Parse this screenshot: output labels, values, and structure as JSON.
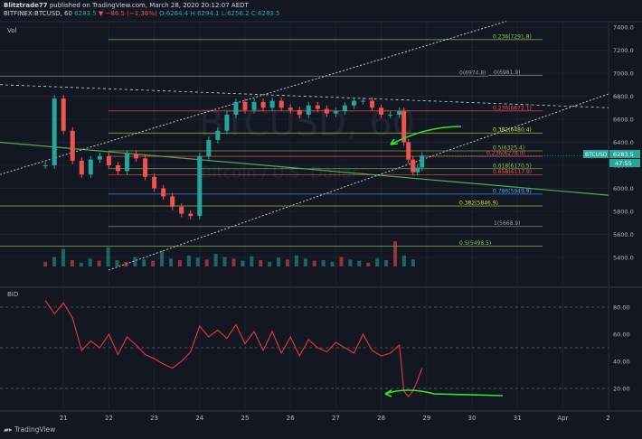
{
  "header": {
    "author": "Blitztrade77",
    "published": "published on TradingView.com, March 28, 2020 20:12:07 AEDT",
    "symbol": "BITFINEX:BTCUSD, 60",
    "last": "6283.5",
    "change": "▼ −86.5 (−1.36%)",
    "o": "O:6264.4",
    "h": "H:6294.1",
    "l": "L:6256.2",
    "c": "C:6283.5"
  },
  "watermark": {
    "main": "BTCUSD, 60",
    "sub": "Bitcoin / U.S. Dollar"
  },
  "colors": {
    "bg": "#131722",
    "up": "#26a69a",
    "down": "#ef5350",
    "line": "#e53935",
    "arrow": "#2ee62e",
    "trend": "#4caf50"
  },
  "chart_data": [
    {
      "type": "candlestick",
      "title": "BITFINEX:BTCUSD, 60",
      "pane_label": "Vol",
      "ylim": [
        5250,
        7450
      ],
      "y_ticks": [
        5400,
        5600,
        5800,
        6000,
        6200,
        6400,
        6600,
        6800,
        7000,
        7200,
        7400
      ],
      "y_tick_labels": [
        "5400.0",
        "5600.0",
        "5800.0",
        "6000.0",
        "6200.0",
        "6400.0",
        "6600.0",
        "6800.0",
        "7000.0",
        "7200.0",
        "7400.0"
      ],
      "x_tick_labels": [
        "21",
        "22",
        "23",
        "24",
        "25",
        "26",
        "27",
        "28",
        "29",
        "30",
        "31",
        "Apr",
        "2"
      ],
      "price_label": "BTCUSD",
      "price_value": "6283.5",
      "price": 6283.5,
      "countdown": "47:55",
      "fib_levels": [
        {
          "label": "0.236(7291.8)",
          "value": 7291.8
        },
        {
          "label": "0(6974.8)",
          "value": 6974.8
        },
        {
          "label": "0(6981.9)",
          "value": 6981.9
        },
        {
          "label": "0.236(6672.1)",
          "value": 6672.1
        },
        {
          "label": "0.382(6480.4)",
          "value": 6480.4
        },
        {
          "label": "0.5(6325.4)",
          "value": 6325.4
        },
        {
          "label": "0.236(6278.0)",
          "value": 6278.0
        },
        {
          "label": "0.618(6170.5)",
          "value": 6170.5
        },
        {
          "label": "0.65B(6117.9)",
          "value": 6117.9
        },
        {
          "label": "0.786(5949.9)",
          "value": 5949.9
        },
        {
          "label": "0.382(5846.9)",
          "value": 5846.9
        },
        {
          "label": "1(5668.9)",
          "value": 5668.9
        },
        {
          "label": "0.5(5498.5)",
          "value": 5498.5
        }
      ],
      "close_path": [
        [
          20.6,
          6200
        ],
        [
          20.8,
          6780
        ],
        [
          21.0,
          6500
        ],
        [
          21.2,
          6240
        ],
        [
          21.4,
          6120
        ],
        [
          21.6,
          6250
        ],
        [
          21.8,
          6280
        ],
        [
          22.0,
          6200
        ],
        [
          22.2,
          6150
        ],
        [
          22.4,
          6300
        ],
        [
          22.6,
          6260
        ],
        [
          22.8,
          6100
        ],
        [
          23.0,
          6000
        ],
        [
          23.2,
          5930
        ],
        [
          23.4,
          5840
        ],
        [
          23.6,
          5780
        ],
        [
          23.8,
          5760
        ],
        [
          24.0,
          6280
        ],
        [
          24.2,
          6420
        ],
        [
          24.4,
          6500
        ],
        [
          24.6,
          6640
        ],
        [
          24.8,
          6750
        ],
        [
          25.0,
          6680
        ],
        [
          25.2,
          6750
        ],
        [
          25.4,
          6700
        ],
        [
          25.6,
          6760
        ],
        [
          25.8,
          6700
        ],
        [
          26.0,
          6680
        ],
        [
          26.2,
          6640
        ],
        [
          26.4,
          6720
        ],
        [
          26.6,
          6690
        ],
        [
          26.8,
          6650
        ],
        [
          27.0,
          6670
        ],
        [
          27.2,
          6720
        ],
        [
          27.4,
          6760
        ],
        [
          27.6,
          6760
        ],
        [
          27.8,
          6700
        ],
        [
          28.0,
          6640
        ],
        [
          28.2,
          6640
        ],
        [
          28.4,
          6670
        ],
        [
          28.5,
          6400
        ],
        [
          28.6,
          6250
        ],
        [
          28.7,
          6140
        ],
        [
          28.8,
          6180
        ],
        [
          28.9,
          6283.5
        ]
      ],
      "volume": [
        0.15,
        0.3,
        0.55,
        0.2,
        0.12,
        0.25,
        0.18,
        0.6,
        0.2,
        0.15,
        0.3,
        0.22,
        0.18,
        0.5,
        0.25,
        0.2,
        0.35,
        0.28,
        0.22,
        0.4,
        0.3,
        0.25,
        0.18,
        0.32,
        0.2,
        0.15,
        0.28,
        0.22,
        0.35,
        0.25,
        0.18,
        0.2,
        0.15,
        0.3,
        0.22,
        0.18,
        0.12,
        0.25,
        0.2,
        0.8,
        0.35,
        0.22
      ]
    },
    {
      "type": "line",
      "title": "BID",
      "ylim": [
        5,
        95
      ],
      "y_ticks": [
        20,
        40,
        60,
        80
      ],
      "y_tick_labels": [
        "20.00",
        "40.00",
        "60.00",
        "80.00"
      ],
      "levels": [
        20,
        50,
        80
      ],
      "x": [
        20.6,
        20.8,
        21.0,
        21.2,
        21.4,
        21.6,
        21.8,
        22.0,
        22.2,
        22.4,
        22.6,
        22.8,
        23.0,
        23.2,
        23.4,
        23.6,
        23.8,
        24.0,
        24.2,
        24.4,
        24.6,
        24.8,
        25.0,
        25.2,
        25.4,
        25.6,
        25.8,
        26.0,
        26.2,
        26.4,
        26.6,
        26.8,
        27.0,
        27.2,
        27.4,
        27.6,
        27.8,
        28.0,
        28.2,
        28.4,
        28.5,
        28.6,
        28.7,
        28.8,
        28.9
      ],
      "values": [
        85,
        75,
        83,
        72,
        48,
        55,
        50,
        60,
        45,
        58,
        52,
        45,
        42,
        38,
        35,
        40,
        47,
        66,
        58,
        63,
        57,
        67,
        53,
        62,
        48,
        62,
        46,
        58,
        44,
        56,
        50,
        47,
        54,
        50,
        46,
        60,
        48,
        44,
        46,
        52,
        18,
        14,
        18,
        26,
        35
      ]
    }
  ],
  "footer": {
    "brand": "TradingView"
  }
}
